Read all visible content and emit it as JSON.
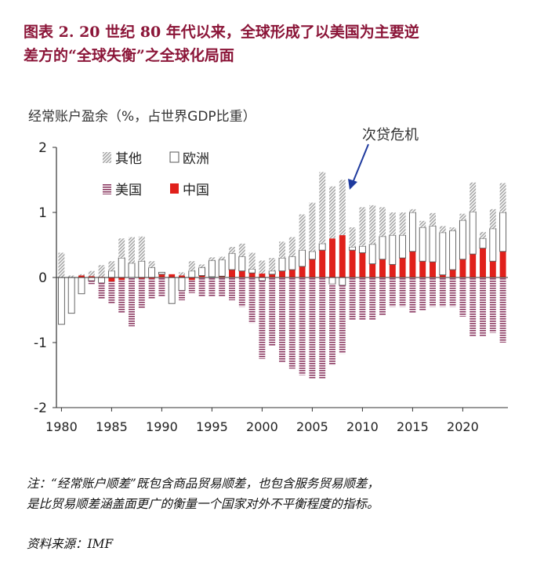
{
  "figure": {
    "title_line1": "图表 2.   20 世纪 80 年代以来，全球形成了以美国为主要逆",
    "title_line2": "差方的“全球失衡”之全球化局面"
  },
  "notes": {
    "line1": "注：“经常账户顺差”既包含商品贸易顺差，也包含服务贸易顺差，",
    "line2": "是比贸易顺差涵盖面更广的衡量一个国家对外不平衡程度的指标。",
    "source": "资料来源：IMF"
  },
  "colors": {
    "other": "#a6a6a6",
    "europe_fill": "#ffffff",
    "europe_stroke": "#555555",
    "usa": "#8b3a62",
    "china": "#e0201b",
    "axis": "#333333",
    "annotation": "#1e3a9e"
  },
  "chart_data": {
    "type": "bar",
    "stacked": true,
    "ylabel": "经常账户盈余（%，占世界GDP比重）",
    "ylim": [
      -2,
      2
    ],
    "yticks": [
      "-2",
      "-1",
      "0",
      "1",
      "2"
    ],
    "xtick_labels": [
      "1980",
      "1985",
      "1990",
      "1995",
      "2000",
      "2005",
      "2010",
      "2015",
      "2020"
    ],
    "x": [
      1980,
      1981,
      1982,
      1983,
      1984,
      1985,
      1986,
      1987,
      1988,
      1989,
      1990,
      1991,
      1992,
      1993,
      1994,
      1995,
      1996,
      1997,
      1998,
      1999,
      2000,
      2001,
      2002,
      2003,
      2004,
      2005,
      2006,
      2007,
      2008,
      2009,
      2010,
      2011,
      2012,
      2013,
      2014,
      2015,
      2016,
      2017,
      2018,
      2019,
      2020,
      2021,
      2022,
      2023,
      2024
    ],
    "legend_position": "top-left",
    "annotation": {
      "text": "次贷危机",
      "year": 2008
    },
    "series": [
      {
        "name": "中国",
        "key": "china",
        "pattern": "solid",
        "values": [
          0,
          0,
          0.03,
          0.02,
          0.01,
          -0.06,
          -0.04,
          0,
          -0.02,
          -0.02,
          0.05,
          0.05,
          0.03,
          -0.04,
          0.03,
          0.01,
          0.02,
          0.12,
          0.1,
          0.07,
          0.06,
          0.05,
          0.1,
          0.12,
          0.17,
          0.28,
          0.42,
          0.6,
          0.65,
          0.42,
          0.38,
          0.21,
          0.28,
          0.2,
          0.3,
          0.4,
          0.25,
          0.24,
          0.04,
          0.12,
          0.28,
          0.36,
          0.45,
          0.25,
          0.4
        ]
      },
      {
        "name": "欧洲",
        "key": "europe",
        "pattern": "open",
        "values": [
          -0.72,
          -0.55,
          -0.25,
          -0.05,
          -0.08,
          0.1,
          0.3,
          0.22,
          0.25,
          0.15,
          0.03,
          -0.4,
          -0.2,
          0.1,
          0.12,
          0.25,
          0.25,
          0.25,
          0.22,
          0.06,
          -0.05,
          0.05,
          0.2,
          0.2,
          0.25,
          0.12,
          0.1,
          -0.1,
          -0.12,
          0.05,
          0.1,
          0.3,
          0.35,
          0.45,
          0.35,
          0.6,
          0.52,
          0.55,
          0.65,
          0.6,
          0.6,
          0.65,
          0.15,
          0.5,
          0.6
        ]
      },
      {
        "name": "美国",
        "key": "usa",
        "pattern": "hatch",
        "values": [
          0,
          0,
          0,
          -0.05,
          -0.25,
          -0.35,
          -0.5,
          -0.75,
          -0.45,
          -0.3,
          -0.3,
          0,
          -0.15,
          -0.2,
          -0.3,
          -0.3,
          -0.3,
          -0.35,
          -0.45,
          -0.7,
          -1.2,
          -1.05,
          -1.3,
          -1.4,
          -1.5,
          -1.55,
          -1.55,
          -1.25,
          -1.05,
          -0.65,
          -0.65,
          -0.65,
          -0.58,
          -0.45,
          -0.45,
          -0.55,
          -0.5,
          -0.45,
          -0.45,
          -0.45,
          -0.6,
          -0.9,
          -0.9,
          -0.85,
          -1.0
        ]
      },
      {
        "name": "其他",
        "key": "other",
        "pattern": "hatch",
        "values": [
          0.38,
          0.03,
          0.02,
          0.08,
          0.18,
          0.15,
          0.3,
          0.4,
          0.38,
          0.1,
          0,
          0,
          0.05,
          0.15,
          0.05,
          0.05,
          0.05,
          0.1,
          0.2,
          0.25,
          0.2,
          0.2,
          0.25,
          0.3,
          0.55,
          0.75,
          1.1,
          0.8,
          0.85,
          0.3,
          0.6,
          0.6,
          0.45,
          0.35,
          0.35,
          0.05,
          0.1,
          0.2,
          0.1,
          0.05,
          0.1,
          0.45,
          0.1,
          0.3,
          0.45
        ]
      }
    ]
  }
}
